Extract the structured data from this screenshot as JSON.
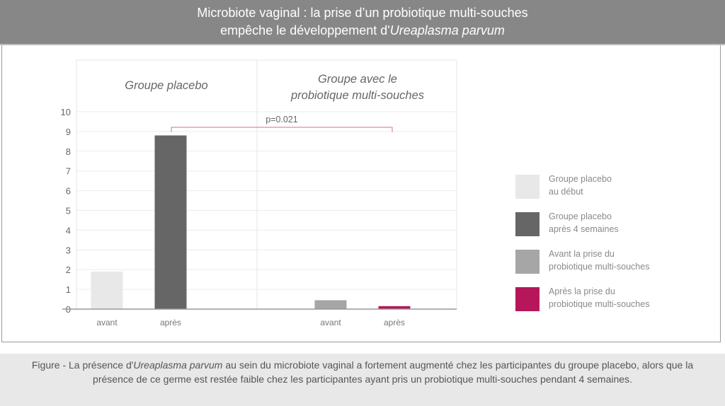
{
  "header": {
    "line1": "Microbiote vaginal : la prise d’un probiotique multi-souches",
    "line2_prefix": "empêche le développement d'",
    "line2_italic": "Ureaplasma parvum"
  },
  "chart_data": {
    "type": "bar",
    "panels": [
      {
        "title_line1": "Groupe placebo",
        "title_line2": "",
        "categories": [
          "avant",
          "après"
        ],
        "values": [
          1.9,
          8.8
        ],
        "colors": [
          "#e8e8e8",
          "#666666"
        ]
      },
      {
        "title_line1": "Groupe avec le",
        "title_line2": "probiotique multi-souches",
        "categories": [
          "avant",
          "après"
        ],
        "values": [
          0.45,
          0.15
        ],
        "colors": [
          "#a6a6a6",
          "#b5175a"
        ]
      }
    ],
    "ylim": [
      0,
      10
    ],
    "yticks": [
      "0",
      "1",
      "2",
      "3",
      "4",
      "5",
      "6",
      "7",
      "8",
      "9",
      "10"
    ],
    "grid": true,
    "annotation": {
      "text": "p=0.021",
      "color": "#e08aa5"
    },
    "legend_placement": "right",
    "legend": [
      {
        "line1": "Groupe placebo",
        "line2": "au début",
        "color": "#e8e8e8"
      },
      {
        "line1": "Groupe placebo",
        "line2": "après 4 semaines",
        "color": "#666666"
      },
      {
        "line1": "Avant la prise du",
        "line2": "probiotique multi-souches",
        "color": "#a6a6a6"
      },
      {
        "line1": "Après la prise du",
        "line2": "probiotique multi-souches",
        "color": "#b5175a"
      }
    ]
  },
  "caption": {
    "prefix": "Figure - La présence d'",
    "italic": "Ureaplasma parvum",
    "rest": " au sein du microbiote vaginal a fortement augmenté chez les participantes du groupe placebo, alors que la présence de ce germe est restée faible chez les participantes ayant pris un probiotique multi-souches pendant 4 semaines."
  }
}
